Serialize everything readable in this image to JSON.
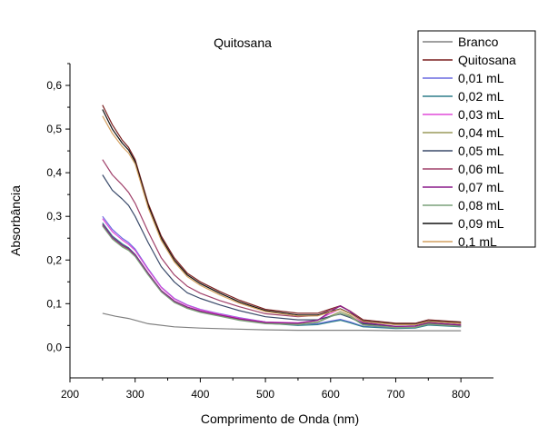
{
  "chart_data": {
    "type": "line",
    "title": "Quitosana",
    "xlabel": "Comprimento de Onda (nm)",
    "ylabel": "Absorbância",
    "xlim": [
      200,
      850
    ],
    "ylim": [
      -0.07,
      0.65
    ],
    "x_ticks": [
      "200",
      "300",
      "400",
      "500",
      "600",
      "700",
      "800"
    ],
    "y_ticks": [
      "0,0",
      "0,1",
      "0,2",
      "0,3",
      "0,4",
      "0,5",
      "0,6"
    ],
    "legend_position": "top-right",
    "grid": false,
    "series": [
      {
        "name": "Branco",
        "color": "#808080",
        "x": [
          250,
          270,
          290,
          320,
          360,
          400,
          450,
          500,
          550,
          600,
          620,
          650,
          700,
          750,
          800
        ],
        "y": [
          0.078,
          0.071,
          0.066,
          0.054,
          0.047,
          0.044,
          0.042,
          0.04,
          0.039,
          0.039,
          0.039,
          0.039,
          0.038,
          0.038,
          0.038
        ]
      },
      {
        "name": "Quitosana",
        "color": "#7a1f1f",
        "x": [
          250,
          265,
          280,
          290,
          300,
          320,
          340,
          360,
          380,
          400,
          430,
          460,
          500,
          550,
          580,
          600,
          615,
          630,
          650,
          700,
          730,
          750,
          800
        ],
        "y": [
          0.555,
          0.51,
          0.475,
          0.458,
          0.43,
          0.33,
          0.255,
          0.205,
          0.17,
          0.15,
          0.128,
          0.108,
          0.087,
          0.078,
          0.078,
          0.088,
          0.095,
          0.083,
          0.063,
          0.055,
          0.055,
          0.063,
          0.058
        ]
      },
      {
        "name": "0,01 mL",
        "color": "#6a6ae0",
        "x": [
          250,
          265,
          280,
          290,
          300,
          320,
          340,
          360,
          380,
          400,
          430,
          460,
          500,
          550,
          580,
          600,
          615,
          630,
          650,
          700,
          730,
          750,
          800
        ],
        "y": [
          0.3,
          0.27,
          0.25,
          0.24,
          0.225,
          0.18,
          0.138,
          0.112,
          0.097,
          0.087,
          0.077,
          0.068,
          0.058,
          0.053,
          0.054,
          0.06,
          0.064,
          0.058,
          0.048,
          0.044,
          0.045,
          0.052,
          0.048
        ]
      },
      {
        "name": "0,02 mL",
        "color": "#2e7d8a",
        "x": [
          250,
          265,
          280,
          290,
          300,
          320,
          340,
          360,
          380,
          400,
          430,
          460,
          500,
          550,
          580,
          600,
          615,
          630,
          650,
          700,
          730,
          750,
          800
        ],
        "y": [
          0.285,
          0.255,
          0.237,
          0.228,
          0.213,
          0.17,
          0.13,
          0.106,
          0.092,
          0.083,
          0.073,
          0.064,
          0.055,
          0.05,
          0.052,
          0.058,
          0.062,
          0.056,
          0.047,
          0.043,
          0.044,
          0.051,
          0.047
        ]
      },
      {
        "name": "0,03 mL",
        "color": "#e04ad8",
        "x": [
          250,
          265,
          280,
          290,
          300,
          320,
          340,
          360,
          380,
          400,
          430,
          460,
          500,
          550,
          580,
          600,
          615,
          630,
          650,
          700,
          730,
          750,
          800
        ],
        "y": [
          0.295,
          0.265,
          0.246,
          0.236,
          0.222,
          0.178,
          0.137,
          0.111,
          0.096,
          0.086,
          0.076,
          0.067,
          0.058,
          0.056,
          0.062,
          0.078,
          0.088,
          0.078,
          0.055,
          0.047,
          0.048,
          0.056,
          0.05
        ]
      },
      {
        "name": "0,04 mL",
        "color": "#9a9a5a",
        "x": [
          250,
          265,
          280,
          290,
          300,
          320,
          340,
          360,
          380,
          400,
          430,
          460,
          500,
          550,
          580,
          600,
          615,
          630,
          650,
          700,
          730,
          750,
          800
        ],
        "y": [
          0.28,
          0.25,
          0.232,
          0.224,
          0.21,
          0.168,
          0.128,
          0.104,
          0.09,
          0.081,
          0.072,
          0.063,
          0.055,
          0.053,
          0.058,
          0.072,
          0.082,
          0.073,
          0.052,
          0.045,
          0.046,
          0.054,
          0.049
        ]
      },
      {
        "name": "0,05 mL",
        "color": "#3a4a6a",
        "x": [
          250,
          265,
          280,
          290,
          300,
          320,
          340,
          360,
          380,
          400,
          430,
          460,
          500,
          550,
          580,
          600,
          615,
          630,
          650,
          700,
          730,
          750,
          800
        ],
        "y": [
          0.395,
          0.36,
          0.34,
          0.325,
          0.3,
          0.24,
          0.185,
          0.15,
          0.125,
          0.112,
          0.097,
          0.084,
          0.07,
          0.063,
          0.063,
          0.071,
          0.076,
          0.068,
          0.054,
          0.048,
          0.049,
          0.056,
          0.051
        ]
      },
      {
        "name": "0,06 mL",
        "color": "#a0406a",
        "x": [
          250,
          265,
          280,
          290,
          300,
          320,
          340,
          360,
          380,
          400,
          430,
          460,
          500,
          550,
          580,
          600,
          615,
          630,
          650,
          700,
          730,
          750,
          800
        ],
        "y": [
          0.43,
          0.395,
          0.372,
          0.355,
          0.33,
          0.265,
          0.205,
          0.166,
          0.14,
          0.124,
          0.107,
          0.093,
          0.077,
          0.07,
          0.073,
          0.086,
          0.094,
          0.083,
          0.06,
          0.052,
          0.053,
          0.06,
          0.054
        ]
      },
      {
        "name": "0,07 mL",
        "color": "#8a1a8a",
        "x": [
          250,
          265,
          280,
          290,
          300,
          320,
          340,
          360,
          380,
          400,
          430,
          460,
          500,
          550,
          580,
          600,
          615,
          630,
          650,
          700,
          730,
          750,
          800
        ],
        "y": [
          0.282,
          0.252,
          0.234,
          0.226,
          0.212,
          0.17,
          0.13,
          0.106,
          0.092,
          0.083,
          0.074,
          0.065,
          0.057,
          0.055,
          0.062,
          0.082,
          0.095,
          0.082,
          0.057,
          0.048,
          0.049,
          0.057,
          0.051
        ]
      },
      {
        "name": "0,08 mL",
        "color": "#7aa07a",
        "x": [
          250,
          265,
          280,
          290,
          300,
          320,
          340,
          360,
          380,
          400,
          430,
          460,
          500,
          550,
          580,
          600,
          615,
          630,
          650,
          700,
          730,
          750,
          800
        ],
        "y": [
          0.278,
          0.248,
          0.23,
          0.222,
          0.208,
          0.166,
          0.127,
          0.103,
          0.089,
          0.08,
          0.071,
          0.062,
          0.054,
          0.052,
          0.057,
          0.07,
          0.078,
          0.07,
          0.051,
          0.045,
          0.046,
          0.053,
          0.048
        ]
      },
      {
        "name": "0,09 mL",
        "color": "#101010",
        "x": [
          250,
          265,
          280,
          290,
          300,
          320,
          340,
          360,
          380,
          400,
          430,
          460,
          500,
          550,
          580,
          600,
          615,
          630,
          650,
          700,
          730,
          750,
          800
        ],
        "y": [
          0.545,
          0.5,
          0.468,
          0.452,
          0.425,
          0.325,
          0.25,
          0.2,
          0.166,
          0.146,
          0.124,
          0.104,
          0.084,
          0.074,
          0.074,
          0.082,
          0.088,
          0.078,
          0.06,
          0.053,
          0.053,
          0.06,
          0.056
        ]
      },
      {
        "name": "0,1 mL",
        "color": "#d4a060",
        "x": [
          250,
          265,
          280,
          290,
          300,
          320,
          340,
          360,
          380,
          400,
          430,
          460,
          500,
          550,
          580,
          600,
          615,
          630,
          650,
          700,
          730,
          750,
          800
        ],
        "y": [
          0.53,
          0.49,
          0.46,
          0.445,
          0.42,
          0.32,
          0.245,
          0.196,
          0.162,
          0.142,
          0.12,
          0.101,
          0.082,
          0.072,
          0.072,
          0.081,
          0.087,
          0.077,
          0.059,
          0.052,
          0.052,
          0.059,
          0.055
        ]
      }
    ]
  }
}
